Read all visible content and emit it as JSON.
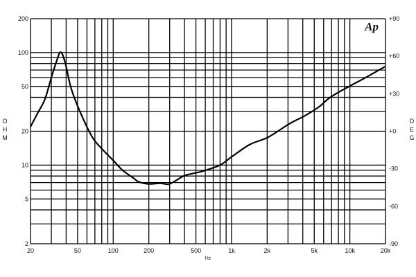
{
  "chart_data": {
    "type": "line",
    "xlabel": "Hz",
    "ylabel": "OHM",
    "y2label": "DEG",
    "logo": "Ap",
    "x_scale": "log",
    "y_scale": "log",
    "xlim": [
      20,
      20000
    ],
    "ylim": [
      2,
      200
    ],
    "y2lim": [
      -90,
      90
    ],
    "grid": true,
    "x_ticks": [
      {
        "value": 20,
        "label": "20"
      },
      {
        "value": 50,
        "label": "50"
      },
      {
        "value": 100,
        "label": "100"
      },
      {
        "value": 200,
        "label": "200"
      },
      {
        "value": 500,
        "label": "500"
      },
      {
        "value": 1000,
        "label": "1k"
      },
      {
        "value": 2000,
        "label": "2k"
      },
      {
        "value": 5000,
        "label": "5k"
      },
      {
        "value": 10000,
        "label": "10k"
      },
      {
        "value": 20000,
        "label": "20k"
      }
    ],
    "y_ticks": [
      {
        "value": 200,
        "label": "200"
      },
      {
        "value": 100,
        "label": "100"
      },
      {
        "value": 50,
        "label": "50"
      },
      {
        "value": 20,
        "label": "20"
      },
      {
        "value": 10,
        "label": "10"
      },
      {
        "value": 5,
        "label": "5"
      },
      {
        "value": 2,
        "label": "2"
      }
    ],
    "y2_ticks": [
      {
        "value": 90,
        "label": "+90"
      },
      {
        "value": 60,
        "label": "+60"
      },
      {
        "value": 30,
        "label": "+30"
      },
      {
        "value": 0,
        "label": "+0"
      },
      {
        "value": -30,
        "label": "-30"
      },
      {
        "value": -60,
        "label": "-60"
      },
      {
        "value": -90,
        "label": "-90"
      }
    ],
    "series": [
      {
        "color": "#000000",
        "x": [
          20,
          23,
          26.5,
          30,
          33,
          35.9,
          39.2,
          44,
          52,
          66,
          80,
          100,
          120,
          150,
          164,
          200,
          250,
          293,
          340,
          405,
          575,
          800,
          986,
          1420,
          2040,
          3060,
          4180,
          5500,
          6890,
          10300,
          14000,
          19800
        ],
        "y": [
          21.9,
          29,
          38.6,
          60,
          82,
          101,
          82,
          48.5,
          30.4,
          18,
          14,
          11,
          9,
          7.6,
          7.1,
          6.8,
          6.9,
          6.76,
          7.3,
          8.1,
          8.85,
          10,
          11.7,
          15.2,
          17.7,
          23.2,
          27.5,
          33,
          40.3,
          51.3,
          61,
          75
        ]
      }
    ]
  }
}
